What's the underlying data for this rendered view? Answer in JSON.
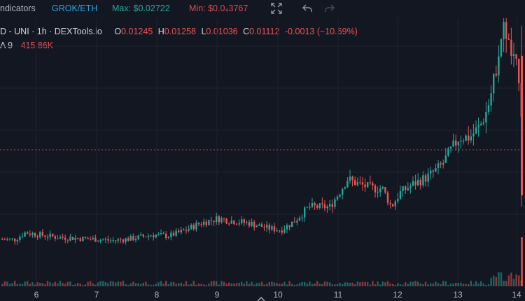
{
  "toolbar": {
    "indicators_label": "ndicators",
    "pair_label": "GROK/ETH",
    "max_label": "Max: $0.02722",
    "min_label": "Min: $0.0₄3767",
    "icons": [
      "fullscreen-icon",
      "undo-icon",
      "redo-icon"
    ]
  },
  "legend": {
    "symbol_line": "D - UNI · 1h · DEXTools.io",
    "o_key": "O",
    "o_val": "0.01245",
    "h_key": "H",
    "h_val": "0.01258",
    "l_key": "L",
    "l_val": "0.01036",
    "c_key": "C",
    "c_val": "0.01112",
    "change": "-0.0013 (−10.69%)",
    "volume_label": "A 9",
    "volume_value": "415.86K"
  },
  "colors": {
    "background": "#131722",
    "up": "#26a69a",
    "down": "#ef5350",
    "text": "#b2b5be",
    "grid": "#1e222d",
    "pair": "#2ea5dd",
    "max": "#26a69a",
    "min": "#d64b55"
  },
  "chart_data": {
    "type": "candlestick",
    "x_ticks": [
      "6",
      "7",
      "8",
      "9",
      "10",
      "11",
      "12",
      "13",
      "14"
    ],
    "ohlc": [
      {
        "o": 0.01245,
        "h": 0.01258,
        "l": 0.01036,
        "c": 0.01112
      }
    ],
    "volume": {
      "label": "A 9",
      "value": "415.86K"
    },
    "grid": true
  }
}
